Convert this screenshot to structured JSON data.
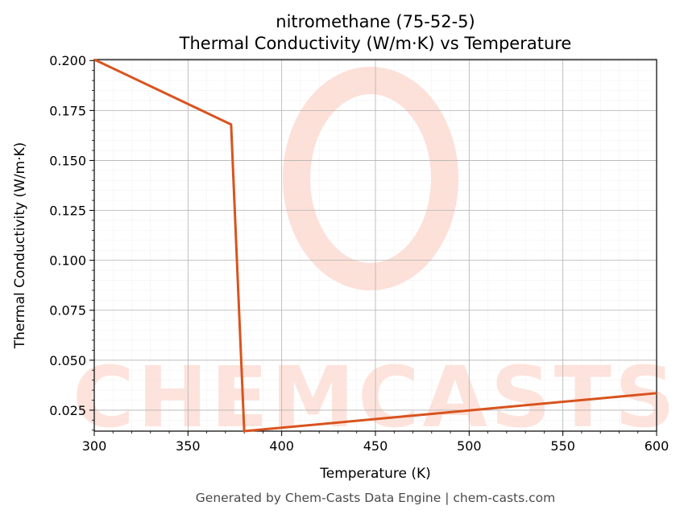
{
  "chart_data": {
    "type": "line",
    "title": "nitromethane (75-52-5)",
    "subtitle": "Thermal Conductivity (W/m·K) vs Temperature",
    "xlabel": "Temperature (K)",
    "ylabel": "Thermal Conductivity (W/m·K)",
    "xlim": [
      300,
      600
    ],
    "ylim": [
      0.0145,
      0.2005
    ],
    "xticks": [
      "300",
      "350",
      "400",
      "450",
      "500",
      "550",
      "600"
    ],
    "yticks": [
      "0.025",
      "0.050",
      "0.075",
      "0.100",
      "0.125",
      "0.150",
      "0.175",
      "0.200"
    ],
    "grid": true,
    "series": [
      {
        "color": "#d9531e",
        "x": [
          300,
          373,
          380,
          600
        ],
        "y": [
          0.2005,
          0.168,
          0.0145,
          0.0335
        ]
      }
    ]
  },
  "watermark": {
    "text": "CHEMCASTS",
    "color": "#fde0d8"
  },
  "footer": "Generated by Chem-Casts Data Engine | chem-casts.com"
}
